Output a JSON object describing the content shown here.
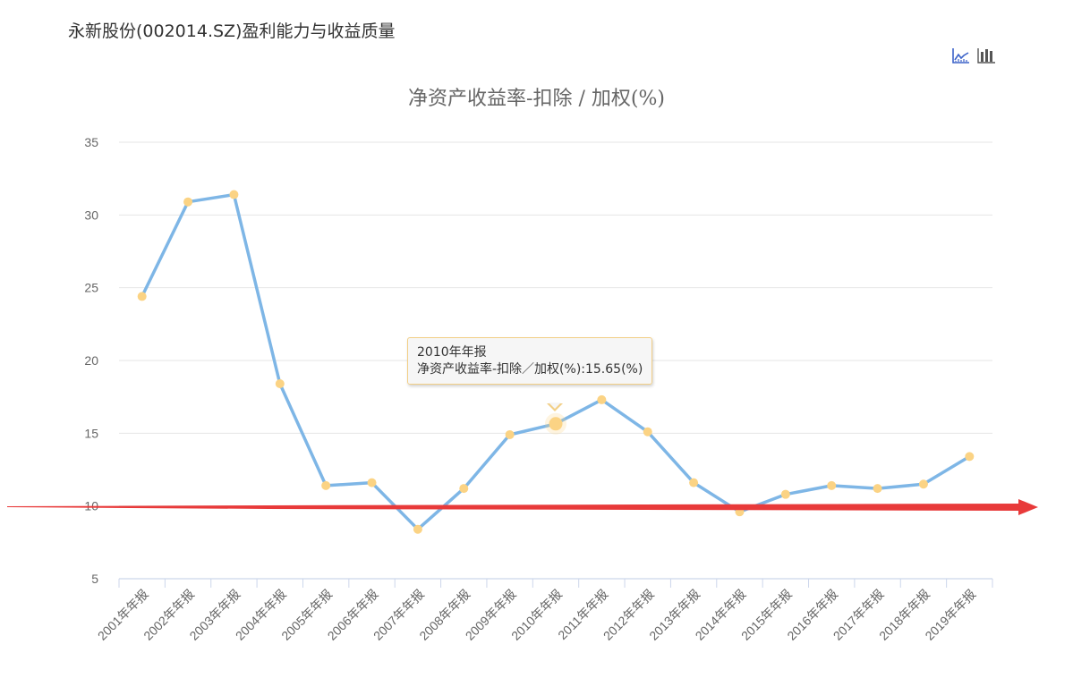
{
  "page": {
    "title": "永新股份(002014.SZ)盈利能力与收益质量"
  },
  "toolbox": {
    "items": [
      {
        "name": "line-chart-icon",
        "label": "折线图",
        "color": "#3b62c9"
      },
      {
        "name": "bar-chart-icon",
        "label": "柱状图",
        "color": "#555555"
      }
    ]
  },
  "tooltip": {
    "title": "2010年年报",
    "line": "净资产收益率-扣除／加权(%):15.65(%)"
  },
  "chart_data": {
    "type": "line",
    "title": "净资产收益率-扣除 / 加权(%)",
    "xlabel": "",
    "ylabel": "",
    "categories": [
      "2001年年报",
      "2002年年报",
      "2003年年报",
      "2004年年报",
      "2005年年报",
      "2006年年报",
      "2007年年报",
      "2008年年报",
      "2009年年报",
      "2010年年报",
      "2011年年报",
      "2012年年报",
      "2013年年报",
      "2014年年报",
      "2015年年报",
      "2016年年报",
      "2017年年报",
      "2018年年报",
      "2019年年报"
    ],
    "series": [
      {
        "name": "净资产收益率-扣除／加权(%)",
        "values": [
          24.4,
          30.9,
          31.4,
          18.4,
          11.4,
          11.6,
          8.4,
          11.2,
          14.9,
          15.65,
          17.3,
          15.1,
          11.6,
          9.6,
          10.8,
          11.4,
          11.2,
          11.5,
          13.4
        ],
        "line_color": "#7eb6e6",
        "marker_color": "#fbd384"
      }
    ],
    "yticks": [
      5,
      10,
      15,
      20,
      25,
      30,
      35
    ],
    "ylim": [
      5,
      35
    ],
    "grid": true,
    "highlighted_point": {
      "category": "2010年年报",
      "value": 15.65
    },
    "annotation": {
      "type": "arrow",
      "color": "#e83a3a",
      "description": "red horizontal arrow near y=10"
    }
  }
}
